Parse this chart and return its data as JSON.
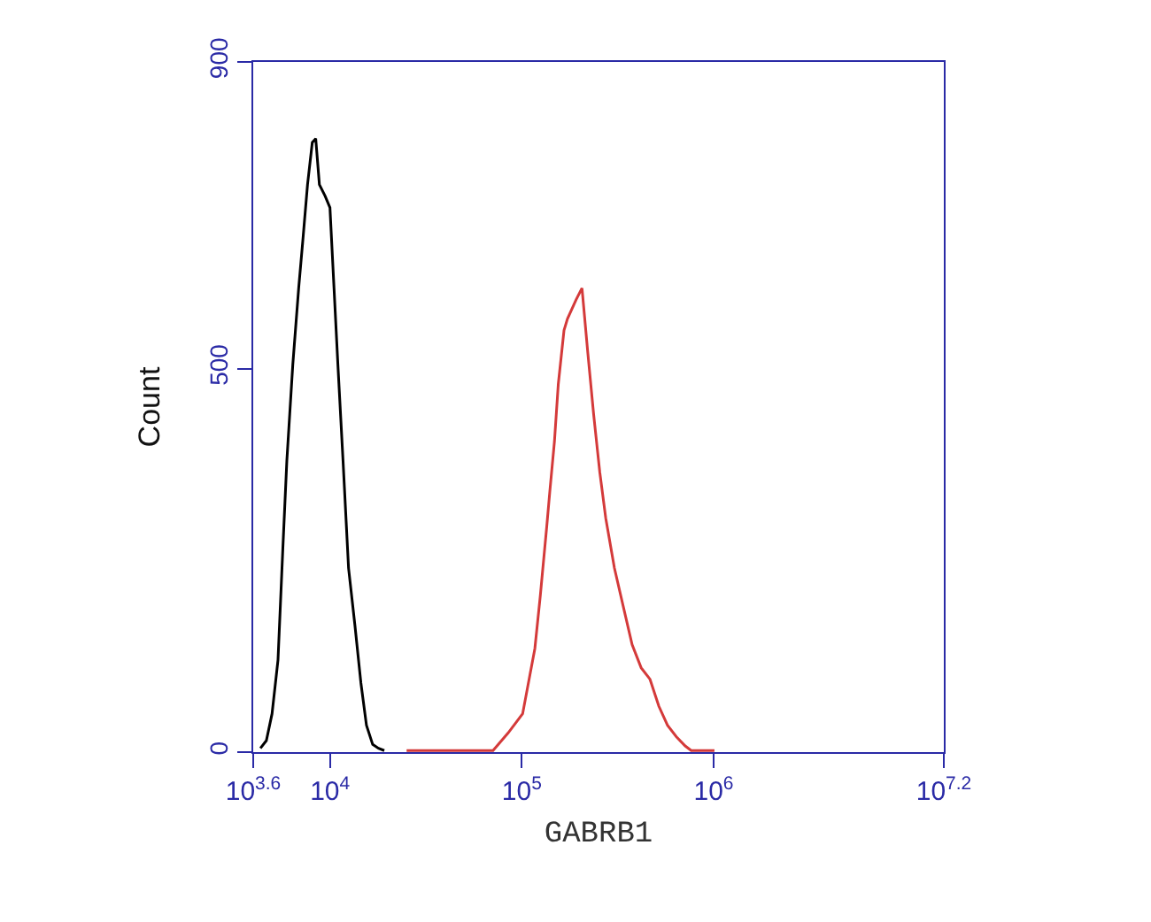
{
  "chart_data": {
    "type": "line",
    "xlabel": "GABRB1",
    "ylabel": "Count",
    "log": "x",
    "xlim": [
      3981,
      15848932
    ],
    "xticks": [
      {
        "value": 3981,
        "label": "10$^{3.6}$"
      },
      {
        "value": 10000,
        "label": "10$^{4}$"
      },
      {
        "value": 100000,
        "label": "10$^{5}$"
      },
      {
        "value": 1000000,
        "label": "10$^{6}$"
      },
      {
        "value": 15848932,
        "label": "10$^{7.2}$"
      }
    ],
    "ylim": [
      0,
      900
    ],
    "yticks": [
      0,
      500,
      900
    ],
    "series": [
      {
        "color": "#000000",
        "x": [
          4340,
          4660,
          4990,
          5360,
          5680,
          5960,
          6400,
          6870,
          7210,
          7640,
          8090,
          8430,
          8810,
          9440,
          10000,
          10500,
          11000,
          11700,
          12500,
          13500,
          14500,
          15500,
          16700,
          17900,
          19200
        ],
        "values": [
          5,
          15,
          50,
          120,
          265,
          380,
          505,
          605,
          665,
          740,
          795,
          800,
          740,
          725,
          710,
          605,
          505,
          380,
          240,
          165,
          90,
          35,
          10,
          5,
          2
        ]
      },
      {
        "color": "#d43a3a",
        "x": [
          25100,
          39800,
          70800,
          84900,
          101000,
          117000,
          125000,
          135000,
          140000,
          148000,
          155000,
          166000,
          173000,
          192000,
          206000,
          221000,
          237000,
          255000,
          274000,
          304000,
          338000,
          376000,
          419000,
          466000,
          518000,
          575000,
          640000,
          711000,
          764000,
          1010000
        ],
        "values": [
          2,
          2,
          2,
          25,
          50,
          135,
          205,
          295,
          340,
          405,
          480,
          550,
          565,
          590,
          605,
          520,
          440,
          365,
          305,
          240,
          190,
          140,
          110,
          95,
          60,
          35,
          20,
          8,
          2,
          2
        ]
      }
    ]
  }
}
